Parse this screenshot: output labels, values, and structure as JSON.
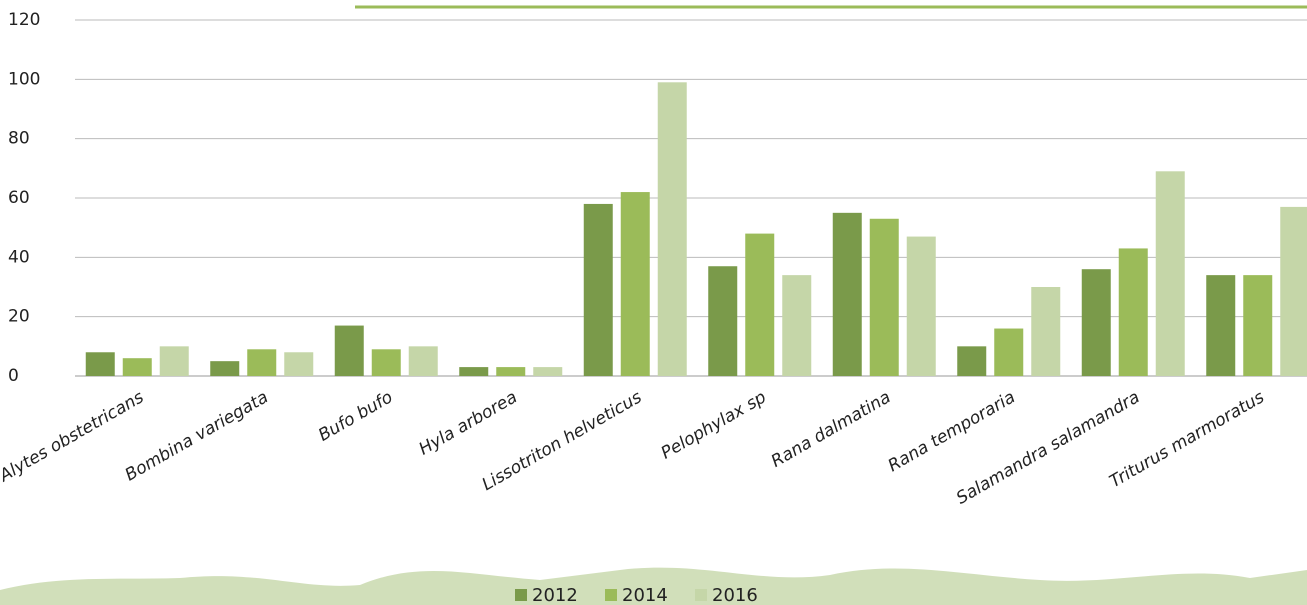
{
  "chart_data": {
    "type": "bar",
    "categories": [
      "Alytes obstetricans",
      "Bombina variegata",
      "Bufo bufo",
      "Hyla arborea",
      "Lissotriton helveticus",
      "Pelophylax sp",
      "Rana dalmatina",
      "Rana temporaria",
      "Salamandra salamandra",
      "Triturus marmoratus"
    ],
    "series": [
      {
        "name": "2012",
        "color": "#7a9a4a",
        "values": [
          8,
          5,
          17,
          3,
          58,
          37,
          55,
          10,
          36,
          34
        ]
      },
      {
        "name": "2014",
        "color": "#9bbb59",
        "values": [
          6,
          9,
          9,
          3,
          62,
          48,
          53,
          16,
          43,
          34
        ]
      },
      {
        "name": "2016",
        "color": "#c5d6a8",
        "values": [
          10,
          8,
          10,
          3,
          99,
          34,
          47,
          30,
          69,
          57
        ]
      }
    ],
    "ylim": [
      0,
      120
    ],
    "yticks": [
      0,
      20,
      40,
      60,
      80,
      100,
      120
    ],
    "grid": true,
    "legend": "bottom"
  }
}
